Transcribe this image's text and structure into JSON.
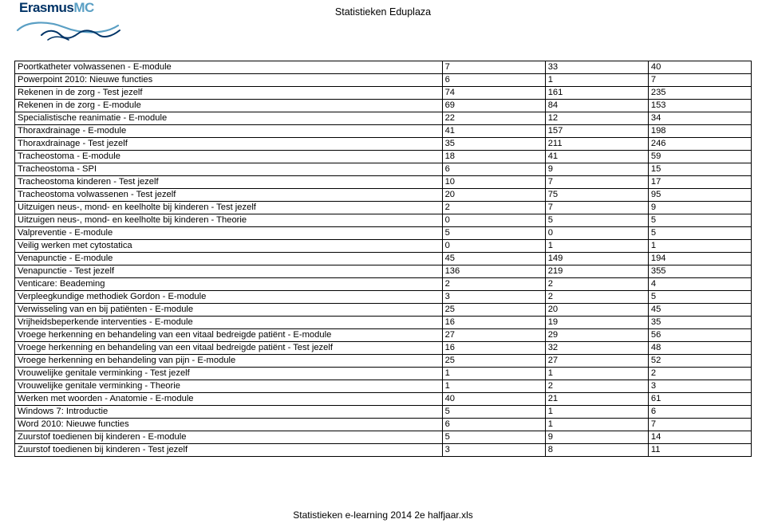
{
  "header": {
    "title": "Statistieken Eduplaza",
    "logo_main": "Erasmus",
    "logo_mc": "MC"
  },
  "footer": {
    "text": "Statistieken e-learning 2014 2e halfjaar.xls"
  },
  "table": {
    "rows": [
      [
        "Poortkatheter volwassenen - E-module",
        "7",
        "33",
        "40"
      ],
      [
        "Powerpoint 2010: Nieuwe functies",
        "6",
        "1",
        "7"
      ],
      [
        "Rekenen in de zorg - Test jezelf",
        "74",
        "161",
        "235"
      ],
      [
        "Rekenen in de zorg - E-module",
        "69",
        "84",
        "153"
      ],
      [
        "Specialistische reanimatie - E-module",
        "22",
        "12",
        "34"
      ],
      [
        "Thoraxdrainage - E-module",
        "41",
        "157",
        "198"
      ],
      [
        "Thoraxdrainage - Test jezelf",
        "35",
        "211",
        "246"
      ],
      [
        "Tracheostoma - E-module",
        "18",
        "41",
        "59"
      ],
      [
        "Tracheostoma - SPI",
        "6",
        "9",
        "15"
      ],
      [
        "Tracheostoma kinderen - Test jezelf",
        "10",
        "7",
        "17"
      ],
      [
        "Tracheostoma volwassenen - Test jezelf",
        "20",
        "75",
        "95"
      ],
      [
        "Uitzuigen neus-, mond- en keelholte bij kinderen - Test jezelf",
        "2",
        "7",
        "9"
      ],
      [
        "Uitzuigen neus-, mond- en keelholte bij kinderen - Theorie",
        "0",
        "5",
        "5"
      ],
      [
        "Valpreventie - E-module",
        "5",
        "0",
        "5"
      ],
      [
        "Veilig werken met cytostatica",
        "0",
        "1",
        "1"
      ],
      [
        "Venapunctie - E-module",
        "45",
        "149",
        "194"
      ],
      [
        "Venapunctie - Test jezelf",
        "136",
        "219",
        "355"
      ],
      [
        "Venticare: Beademing",
        "2",
        "2",
        "4"
      ],
      [
        "Verpleegkundige methodiek Gordon - E-module",
        "3",
        "2",
        "5"
      ],
      [
        "Verwisseling van en bij patiënten - E-module",
        "25",
        "20",
        "45"
      ],
      [
        "Vrijheidsbeperkende interventies - E-module",
        "16",
        "19",
        "35"
      ],
      [
        "Vroege herkenning en behandeling van een vitaal bedreigde patiënt  - E-module",
        "27",
        "29",
        "56"
      ],
      [
        "Vroege herkenning en behandeling van een vitaal bedreigde patiënt - Test jezelf",
        "16",
        "32",
        "48"
      ],
      [
        "Vroege herkenning en behandeling van pijn - E-module",
        "25",
        "27",
        "52"
      ],
      [
        "Vrouwelijke genitale verminking - Test jezelf",
        "1",
        "1",
        "2"
      ],
      [
        "Vrouwelijke genitale verminking - Theorie",
        "1",
        "2",
        "3"
      ],
      [
        "Werken met woorden - Anatomie - E-module",
        "40",
        "21",
        "61"
      ],
      [
        "Windows 7: Introductie",
        "5",
        "1",
        "6"
      ],
      [
        "Word 2010: Nieuwe functies",
        "6",
        "1",
        "7"
      ],
      [
        "Zuurstof toedienen bij kinderen - E-module",
        "5",
        "9",
        "14"
      ],
      [
        "Zuurstof toedienen bij kinderen - Test jezelf",
        "3",
        "8",
        "11"
      ]
    ]
  },
  "logo_colors": {
    "dark": "#003366",
    "light": "#5a9fc4"
  }
}
